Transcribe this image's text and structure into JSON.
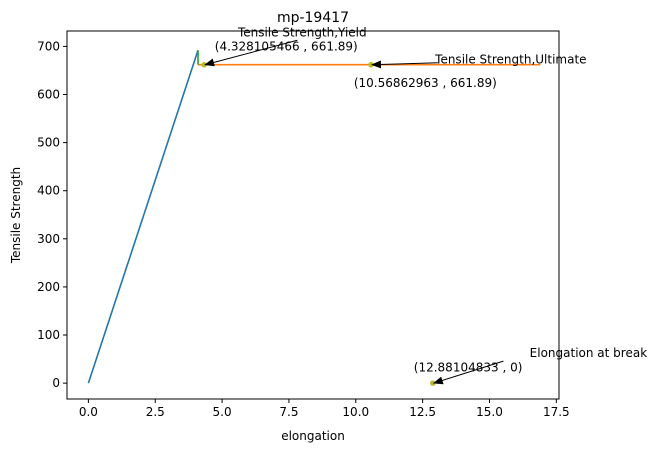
{
  "chart_data": {
    "type": "line",
    "title": "mp-19417",
    "xlabel": "elongation",
    "ylabel": "Tensile Strength",
    "xlim": [
      -0.8,
      17.6
    ],
    "ylim": [
      -33,
      732
    ],
    "xticks": [
      0.0,
      2.5,
      5.0,
      7.5,
      10.0,
      12.5,
      15.0,
      17.5
    ],
    "xtick_labels": [
      "0.0",
      "2.5",
      "5.0",
      "7.5",
      "10.0",
      "12.5",
      "15.0",
      "17.5"
    ],
    "yticks": [
      0,
      100,
      200,
      300,
      400,
      500,
      600,
      700
    ],
    "ytick_labels": [
      "0",
      "100",
      "200",
      "300",
      "400",
      "500",
      "600",
      "700"
    ],
    "grid": false,
    "series": [
      {
        "color": "#1f77b4",
        "x": [
          0,
          4.1
        ],
        "y": [
          0,
          692
        ]
      },
      {
        "color": "#ff7f0e",
        "x": [
          4.1,
          4.328105466,
          16.9
        ],
        "y": [
          661.89,
          661.89,
          661.89
        ]
      },
      {
        "color": "#2ca02c",
        "x": [
          4.1,
          4.1
        ],
        "y": [
          661.89,
          692
        ]
      }
    ],
    "points": [
      {
        "x": 4.328105466,
        "y": 661.89,
        "color": "#bcbd22"
      },
      {
        "x": 10.56862963,
        "y": 661.89,
        "color": "#bcbd22"
      },
      {
        "x": 12.88104833,
        "y": 0,
        "color": "#bcbd22"
      }
    ],
    "annotations": [
      {
        "text": "Tensile Strength,Yield",
        "x": 8.0,
        "y": 721,
        "arrow_to": [
          4.328105466,
          661.89
        ]
      },
      {
        "text": "(4.328105466 , 661.89)",
        "x": 7.4,
        "y": 691
      },
      {
        "text": "Tensile Strength,Ultimate",
        "x": 15.8,
        "y": 664,
        "arrow_to": [
          10.56862963,
          661.89
        ]
      },
      {
        "text": "(10.56862963 , 661.89)",
        "x": 12.6,
        "y": 616
      },
      {
        "text": "Elongation at break",
        "x": 18.7,
        "y": 54,
        "arrow_to": [
          12.88104833,
          0
        ]
      },
      {
        "text": "(12.88104833 , 0)",
        "x": 14.2,
        "y": 24
      }
    ]
  }
}
